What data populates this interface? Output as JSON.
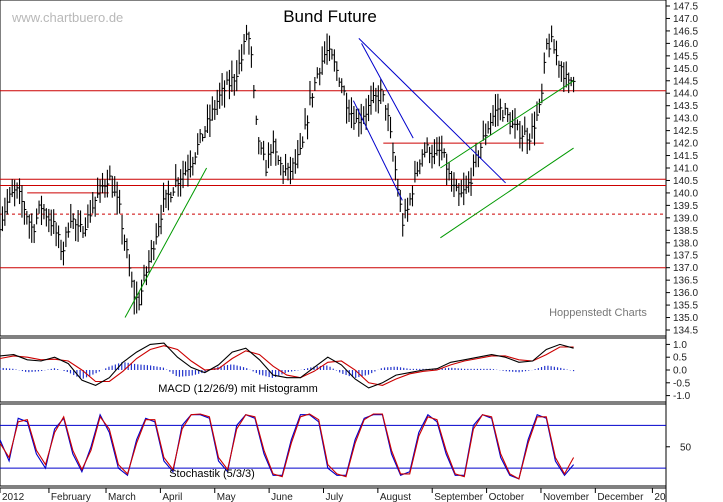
{
  "chart_data": [
    {
      "type": "ohlc",
      "title": "Bund Future",
      "watermark": "www.chartbuero.de",
      "credit": "Hoppenstedt Charts",
      "ylim": [
        134.5,
        147.5
      ],
      "y_ticks": [
        134.5,
        135.0,
        135.5,
        136.0,
        136.5,
        137.0,
        137.5,
        138.0,
        138.5,
        139.0,
        139.5,
        140.0,
        140.5,
        141.0,
        141.5,
        142.0,
        142.5,
        143.0,
        143.5,
        144.0,
        144.5,
        145.0,
        145.5,
        146.0,
        146.5,
        147.0,
        147.5
      ],
      "y_tick_labels": [
        "134.5",
        "135.0",
        "135.5",
        "136.0",
        "136.5",
        "137.0",
        "137.5",
        "138.0",
        "138.5",
        "139.0",
        "139.5",
        "140.0",
        "140.5",
        "141.0",
        "141.5",
        "142.0",
        "142.5",
        "143.0",
        "143.5",
        "144.0",
        "144.5",
        "145.0",
        "145.5",
        "146.0",
        "146.5",
        "147.0",
        "147.5"
      ],
      "x_labels": [
        "2012",
        "February",
        "March",
        "April",
        "May",
        "June",
        "July",
        "August",
        "September",
        "October",
        "November",
        "December",
        "20"
      ],
      "horizontal_lines": [
        {
          "y": 144.1,
          "style": "solid",
          "color": "#cc0000"
        },
        {
          "y": 140.55,
          "style": "solid",
          "color": "#cc0000"
        },
        {
          "y": 140.3,
          "style": "solid",
          "color": "#cc0000"
        },
        {
          "y": 139.15,
          "style": "dashed",
          "color": "#cc0000"
        },
        {
          "y": 137.0,
          "style": "solid",
          "color": "#cc0000"
        }
      ],
      "segment_lines": [
        {
          "from": [
            0.5,
            140.0
          ],
          "to": [
            2.0,
            140.0
          ],
          "color": "#cc0000"
        },
        {
          "from": [
            7.05,
            142.0
          ],
          "to": [
            10.0,
            142.0
          ],
          "color": "#cc0000"
        }
      ],
      "trend_lines": [
        {
          "from": [
            2.3,
            135.0
          ],
          "to": [
            3.8,
            141.0
          ],
          "color": "#009900"
        },
        {
          "from": [
            6.6,
            146.2
          ],
          "to": [
            9.3,
            140.4
          ],
          "color": "#0000cc"
        },
        {
          "from": [
            6.5,
            143.7
          ],
          "to": [
            7.4,
            139.7
          ],
          "color": "#0000cc"
        },
        {
          "from": [
            6.65,
            146.0
          ],
          "to": [
            7.6,
            142.2
          ],
          "color": "#0000cc"
        },
        {
          "from": [
            8.1,
            141.0
          ],
          "to": [
            10.55,
            144.5
          ],
          "color": "#009900"
        },
        {
          "from": [
            8.1,
            138.2
          ],
          "to": [
            10.55,
            141.8
          ],
          "color": "#009900"
        }
      ],
      "close_path": [
        [
          0.0,
          138.8
        ],
        [
          0.15,
          139.7
        ],
        [
          0.3,
          140.1
        ],
        [
          0.45,
          139.4
        ],
        [
          0.6,
          138.5
        ],
        [
          0.75,
          139.5
        ],
        [
          0.9,
          139.0
        ],
        [
          1.0,
          138.6
        ],
        [
          1.15,
          137.6
        ],
        [
          1.3,
          139.1
        ],
        [
          1.45,
          138.4
        ],
        [
          1.6,
          138.9
        ],
        [
          1.75,
          139.7
        ],
        [
          1.9,
          140.3
        ],
        [
          2.0,
          140.7
        ],
        [
          2.1,
          140.0
        ],
        [
          2.2,
          139.3
        ],
        [
          2.35,
          137.3
        ],
        [
          2.45,
          136.0
        ],
        [
          2.55,
          135.6
        ],
        [
          2.7,
          136.9
        ],
        [
          2.85,
          138.2
        ],
        [
          3.0,
          139.5
        ],
        [
          3.1,
          139.9
        ],
        [
          3.25,
          140.5
        ],
        [
          3.4,
          140.9
        ],
        [
          3.55,
          141.4
        ],
        [
          3.7,
          142.2
        ],
        [
          3.85,
          142.9
        ],
        [
          4.0,
          143.7
        ],
        [
          4.15,
          144.2
        ],
        [
          4.3,
          144.6
        ],
        [
          4.45,
          145.4
        ],
        [
          4.55,
          146.6
        ],
        [
          4.62,
          145.5
        ],
        [
          4.7,
          142.9
        ],
        [
          4.8,
          141.6
        ],
        [
          4.9,
          141.0
        ],
        [
          5.0,
          142.0
        ],
        [
          5.1,
          141.3
        ],
        [
          5.2,
          141.0
        ],
        [
          5.3,
          140.8
        ],
        [
          5.45,
          141.2
        ],
        [
          5.55,
          141.7
        ],
        [
          5.7,
          143.6
        ],
        [
          5.85,
          144.9
        ],
        [
          6.0,
          145.7
        ],
        [
          6.1,
          145.4
        ],
        [
          6.25,
          144.6
        ],
        [
          6.4,
          143.5
        ],
        [
          6.55,
          142.9
        ],
        [
          6.7,
          143.2
        ],
        [
          6.85,
          143.6
        ],
        [
          7.0,
          144.0
        ],
        [
          7.1,
          143.5
        ],
        [
          7.2,
          142.0
        ],
        [
          7.3,
          140.5
        ],
        [
          7.4,
          138.8
        ],
        [
          7.5,
          139.3
        ],
        [
          7.6,
          140.3
        ],
        [
          7.75,
          141.6
        ],
        [
          7.9,
          141.8
        ],
        [
          8.0,
          141.4
        ],
        [
          8.1,
          141.7
        ],
        [
          8.2,
          141.2
        ],
        [
          8.3,
          140.3
        ],
        [
          8.45,
          139.8
        ],
        [
          8.6,
          140.2
        ],
        [
          8.8,
          141.6
        ],
        [
          9.0,
          142.8
        ],
        [
          9.15,
          143.4
        ],
        [
          9.3,
          143.2
        ],
        [
          9.45,
          142.6
        ],
        [
          9.6,
          142.4
        ],
        [
          9.75,
          142.3
        ],
        [
          9.85,
          142.9
        ],
        [
          9.95,
          143.5
        ],
        [
          10.05,
          145.9
        ],
        [
          10.15,
          146.0
        ],
        [
          10.25,
          145.4
        ],
        [
          10.35,
          145.0
        ],
        [
          10.45,
          144.3
        ],
        [
          10.55,
          144.7
        ]
      ]
    },
    {
      "type": "line",
      "title": "MACD (12/26/9) mit Histogramm",
      "ylim": [
        -1.0,
        1.0
      ],
      "y_ticks": [
        -1.0,
        -0.5,
        0.0,
        0.5,
        1.0
      ],
      "y_tick_labels": [
        "-1.0",
        "-0.5",
        "0.0",
        "0.5",
        "1.0"
      ],
      "series": [
        {
          "values": [
            0.55,
            0.6,
            0.4,
            0.35,
            0.5,
            0.25,
            -0.4,
            -0.6,
            -0.3,
            0.3,
            0.7,
            1.0,
            1.05,
            0.5,
            0.1,
            -0.1,
            0.2,
            0.7,
            0.85,
            0.4,
            -0.2,
            -0.3,
            -0.3,
            0.1,
            0.5,
            0.2,
            -0.35,
            -0.7,
            -0.5,
            -0.2,
            -0.1,
            0.0,
            0.05,
            0.3,
            0.4,
            0.5,
            0.6,
            0.5,
            0.3,
            0.35,
            0.8,
            1.0,
            0.85
          ],
          "color": "#000000"
        },
        {
          "values": [
            0.45,
            0.55,
            0.5,
            0.4,
            0.42,
            0.35,
            0.0,
            -0.45,
            -0.45,
            -0.05,
            0.45,
            0.8,
            0.95,
            0.8,
            0.35,
            0.0,
            0.05,
            0.45,
            0.75,
            0.6,
            0.15,
            -0.2,
            -0.3,
            -0.05,
            0.3,
            0.35,
            0.0,
            -0.5,
            -0.6,
            -0.35,
            -0.15,
            -0.05,
            0.0,
            0.2,
            0.35,
            0.45,
            0.55,
            0.55,
            0.4,
            0.35,
            0.6,
            0.9,
            0.9
          ],
          "color": "#cc0000"
        }
      ]
    },
    {
      "type": "line",
      "title": "Stochastik (5/3/3)",
      "ylim": [
        0,
        100
      ],
      "y_ticks": [
        50
      ],
      "y_tick_labels": [
        "50"
      ],
      "horizontal_lines": [
        {
          "y": 80,
          "color": "#0000cc"
        },
        {
          "y": 20,
          "color": "#0000cc"
        }
      ],
      "series": [
        {
          "values": [
            60,
            30,
            90,
            85,
            40,
            20,
            75,
            90,
            40,
            15,
            50,
            95,
            70,
            20,
            10,
            60,
            90,
            85,
            30,
            15,
            80,
            95,
            95,
            90,
            30,
            15,
            80,
            95,
            90,
            40,
            10,
            10,
            60,
            95,
            95,
            85,
            20,
            10,
            10,
            60,
            90,
            95,
            95,
            40,
            10,
            15,
            70,
            95,
            85,
            40,
            10,
            10,
            80,
            95,
            90,
            35,
            10,
            5,
            60,
            95,
            90,
            30,
            10,
            25
          ],
          "color": "#0000cc"
        },
        {
          "values": [
            55,
            35,
            85,
            88,
            45,
            25,
            70,
            92,
            45,
            18,
            45,
            92,
            75,
            25,
            12,
            55,
            88,
            88,
            35,
            18,
            75,
            95,
            96,
            92,
            35,
            18,
            75,
            95,
            92,
            45,
            12,
            8,
            55,
            92,
            96,
            88,
            25,
            12,
            8,
            55,
            88,
            96,
            96,
            45,
            12,
            12,
            65,
            92,
            88,
            45,
            12,
            8,
            75,
            95,
            92,
            40,
            12,
            5,
            55,
            92,
            92,
            35,
            12,
            35
          ],
          "color": "#cc0000"
        }
      ]
    }
  ]
}
